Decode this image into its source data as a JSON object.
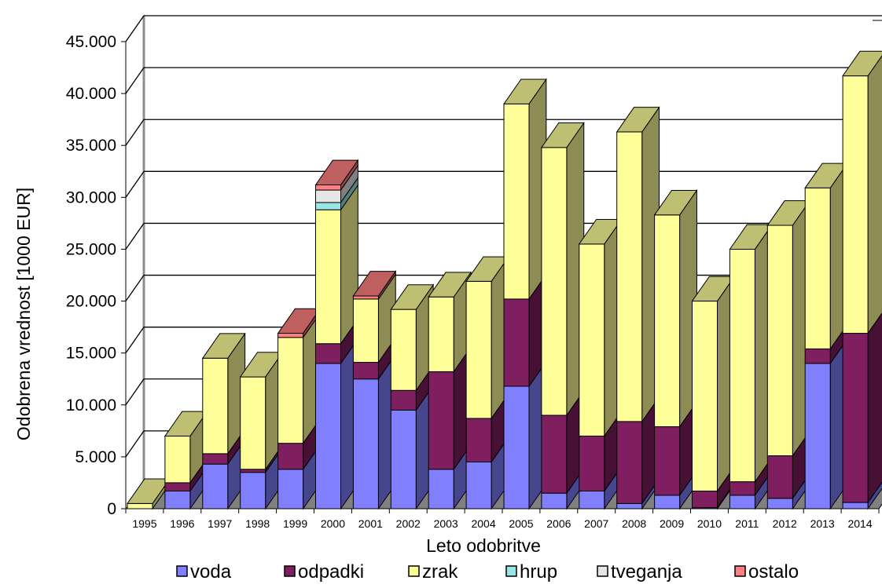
{
  "chart_data": {
    "type": "bar",
    "stacked": true,
    "three_d": true,
    "xlabel": "Leto odobritve",
    "ylabel": "Odobrena vrednost [1000 EUR]",
    "ylim": [
      0,
      45000
    ],
    "yticks": [
      "0",
      "5.000",
      "10.000",
      "15.000",
      "20.000",
      "25.000",
      "30.000",
      "35.000",
      "40.000",
      "45.000"
    ],
    "categories": [
      "1995",
      "1996",
      "1997",
      "1998",
      "1999",
      "2000",
      "2001",
      "2002",
      "2003",
      "2004",
      "2005",
      "2006",
      "2007",
      "2008",
      "2009",
      "2010",
      "2011",
      "2012",
      "2013",
      "2014"
    ],
    "legend_position": "bottom",
    "series": [
      {
        "name": "voda",
        "color": "#8080ff",
        "values": [
          0,
          1700,
          4300,
          3500,
          3800,
          14000,
          12500,
          9500,
          3800,
          4500,
          11800,
          1500,
          1700,
          500,
          1300,
          100,
          1300,
          1000,
          14000,
          600
        ]
      },
      {
        "name": "odpadki",
        "color": "#7f1f5f",
        "values": [
          0,
          800,
          1000,
          300,
          2500,
          1900,
          1600,
          1900,
          9400,
          4200,
          8400,
          7500,
          5300,
          7900,
          6600,
          1600,
          1300,
          4100,
          1400,
          16300
        ]
      },
      {
        "name": "zrak",
        "color": "#ffff99",
        "values": [
          500,
          4500,
          9200,
          8900,
          10200,
          12900,
          6100,
          7800,
          7200,
          13200,
          18800,
          25800,
          18500,
          27900,
          20400,
          18300,
          22400,
          22200,
          15500,
          24800
        ]
      },
      {
        "name": "hrup",
        "color": "#99e6e6",
        "values": [
          0,
          0,
          0,
          0,
          0,
          700,
          0,
          0,
          0,
          0,
          0,
          0,
          0,
          0,
          0,
          0,
          0,
          0,
          0,
          0
        ]
      },
      {
        "name": "tveganja",
        "color": "#e6e6e6",
        "values": [
          0,
          0,
          0,
          0,
          0,
          1200,
          0,
          0,
          0,
          0,
          0,
          0,
          0,
          0,
          0,
          0,
          0,
          0,
          0,
          0
        ]
      },
      {
        "name": "ostalo",
        "color": "#ff8080",
        "values": [
          0,
          0,
          0,
          0,
          400,
          500,
          300,
          0,
          0,
          0,
          0,
          0,
          0,
          0,
          0,
          0,
          0,
          0,
          0,
          0
        ]
      }
    ]
  }
}
